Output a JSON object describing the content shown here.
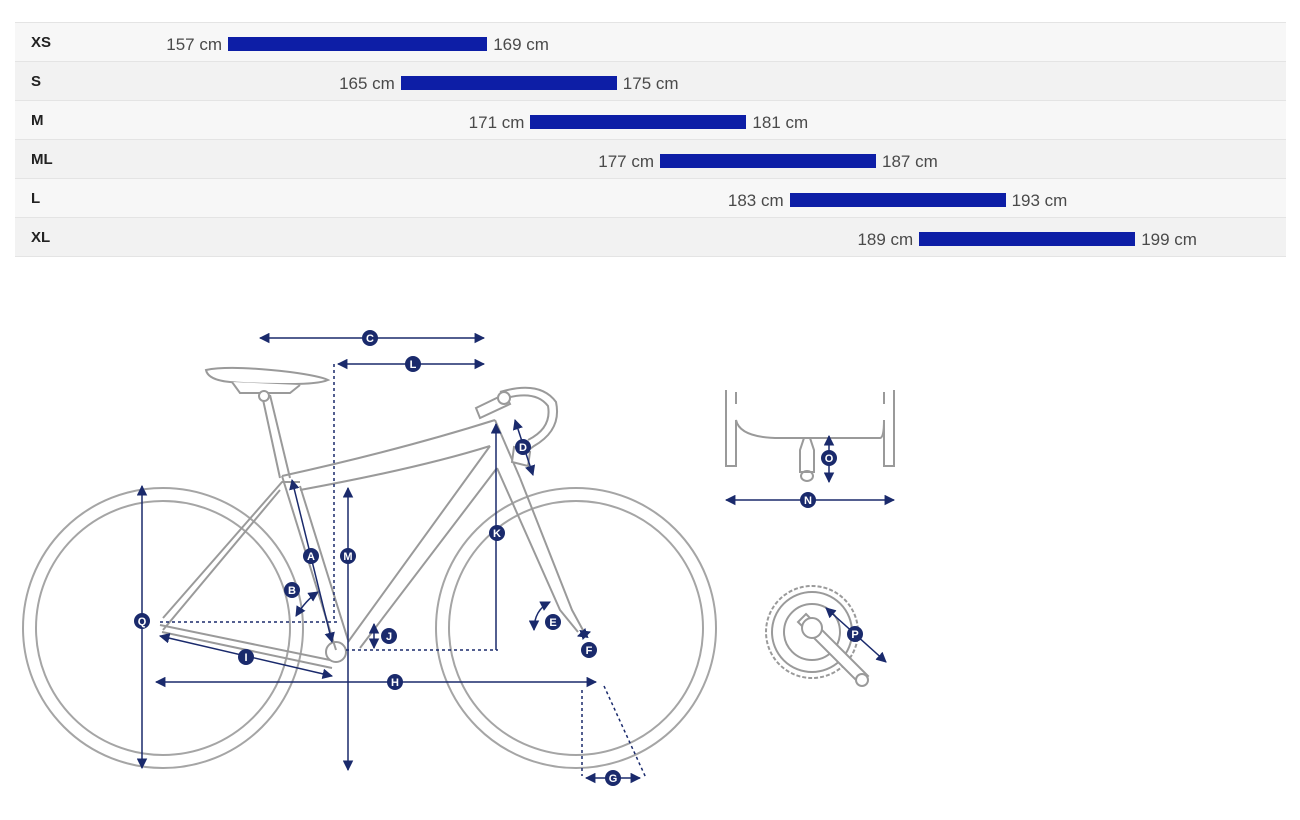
{
  "size_chart": {
    "unit": "cm",
    "rows": [
      {
        "size": "XS",
        "min": 157,
        "max": 169,
        "min_label": "157 cm",
        "max_label": "169 cm"
      },
      {
        "size": "S",
        "min": 165,
        "max": 175,
        "min_label": "165 cm",
        "max_label": "175 cm"
      },
      {
        "size": "M",
        "min": 171,
        "max": 181,
        "min_label": "171 cm",
        "max_label": "181 cm"
      },
      {
        "size": "ML",
        "min": 177,
        "max": 187,
        "min_label": "177 cm",
        "max_label": "187 cm"
      },
      {
        "size": "L",
        "min": 183,
        "max": 193,
        "min_label": "183 cm",
        "max_label": "193 cm"
      },
      {
        "size": "XL",
        "min": 189,
        "max": 199,
        "min_label": "189 cm",
        "max_label": "199 cm"
      }
    ],
    "bar_color": "#0d1ea6"
  },
  "geometry_diagram": {
    "labels": {
      "A": "A",
      "B": "B",
      "C": "C",
      "D": "D",
      "E": "E",
      "F": "F",
      "G": "G",
      "H": "H",
      "I": "I",
      "J": "J",
      "K": "K",
      "L": "L",
      "M": "M",
      "N": "N",
      "O": "O",
      "P": "P",
      "Q": "Q"
    },
    "accent_color": "#1a2a6c",
    "frame_color": "#9a9a9a"
  }
}
